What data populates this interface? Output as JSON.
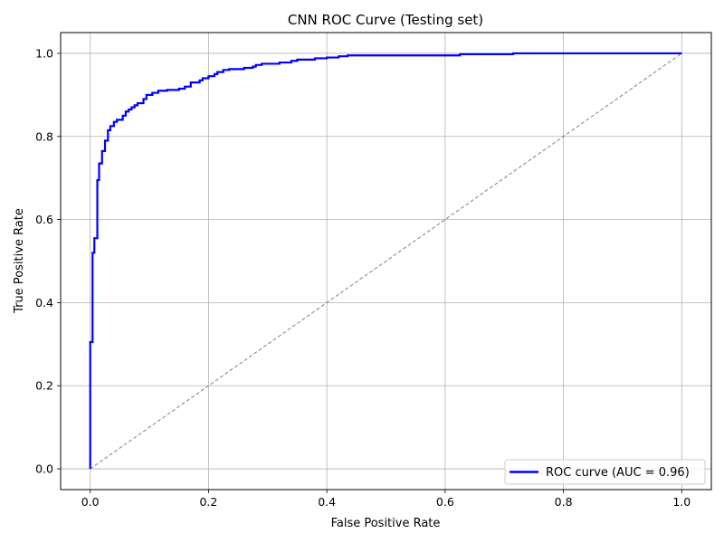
{
  "chart_data": {
    "type": "line",
    "title": "CNN ROC Curve (Testing set)",
    "xlabel": "False Positive Rate",
    "ylabel": "True Positive Rate",
    "xlim": [
      -0.05,
      1.05
    ],
    "ylim": [
      -0.05,
      1.05
    ],
    "xticks": [
      "0.0",
      "0.2",
      "0.4",
      "0.6",
      "0.8",
      "1.0"
    ],
    "yticks": [
      "0.0",
      "0.2",
      "0.4",
      "0.6",
      "0.8",
      "1.0"
    ],
    "grid": true,
    "legend": {
      "position": "lower-right",
      "entries": [
        "ROC curve (AUC = 0.96)"
      ]
    },
    "series": [
      {
        "name": "ROC curve (AUC = 0.96)",
        "color": "#0000ff",
        "style": "step",
        "x": [
          0.0,
          0.0,
          0.004,
          0.004,
          0.007,
          0.007,
          0.012,
          0.012,
          0.015,
          0.015,
          0.02,
          0.02,
          0.025,
          0.025,
          0.03,
          0.03,
          0.034,
          0.034,
          0.04,
          0.04,
          0.045,
          0.045,
          0.055,
          0.055,
          0.06,
          0.06,
          0.065,
          0.065,
          0.07,
          0.07,
          0.075,
          0.075,
          0.08,
          0.08,
          0.09,
          0.09,
          0.095,
          0.095,
          0.105,
          0.105,
          0.115,
          0.115,
          0.13,
          0.13,
          0.15,
          0.15,
          0.16,
          0.16,
          0.17,
          0.17,
          0.185,
          0.185,
          0.19,
          0.19,
          0.2,
          0.2,
          0.21,
          0.21,
          0.215,
          0.215,
          0.225,
          0.225,
          0.235,
          0.235,
          0.26,
          0.26,
          0.275,
          0.275,
          0.28,
          0.28,
          0.29,
          0.29,
          0.32,
          0.32,
          0.34,
          0.34,
          0.35,
          0.35,
          0.38,
          0.38,
          0.4,
          0.4,
          0.42,
          0.42,
          0.435,
          0.435,
          0.625,
          0.625,
          0.715,
          0.715,
          1.0
        ],
        "y": [
          0.0,
          0.305,
          0.305,
          0.52,
          0.52,
          0.555,
          0.555,
          0.695,
          0.695,
          0.735,
          0.735,
          0.765,
          0.765,
          0.79,
          0.79,
          0.815,
          0.815,
          0.825,
          0.825,
          0.835,
          0.835,
          0.84,
          0.84,
          0.85,
          0.85,
          0.86,
          0.86,
          0.865,
          0.865,
          0.87,
          0.87,
          0.875,
          0.875,
          0.88,
          0.88,
          0.89,
          0.89,
          0.9,
          0.9,
          0.905,
          0.905,
          0.91,
          0.91,
          0.912,
          0.912,
          0.915,
          0.915,
          0.92,
          0.92,
          0.93,
          0.93,
          0.935,
          0.935,
          0.94,
          0.94,
          0.945,
          0.945,
          0.95,
          0.95,
          0.955,
          0.955,
          0.96,
          0.96,
          0.962,
          0.962,
          0.965,
          0.965,
          0.968,
          0.968,
          0.972,
          0.972,
          0.975,
          0.975,
          0.978,
          0.978,
          0.982,
          0.982,
          0.985,
          0.985,
          0.988,
          0.988,
          0.99,
          0.99,
          0.993,
          0.993,
          0.995,
          0.995,
          0.998,
          0.998,
          1.0,
          1.0
        ]
      },
      {
        "color": "#808080",
        "style": "dashed",
        "x": [
          0.0,
          1.0
        ],
        "y": [
          0.0,
          1.0
        ]
      }
    ]
  }
}
